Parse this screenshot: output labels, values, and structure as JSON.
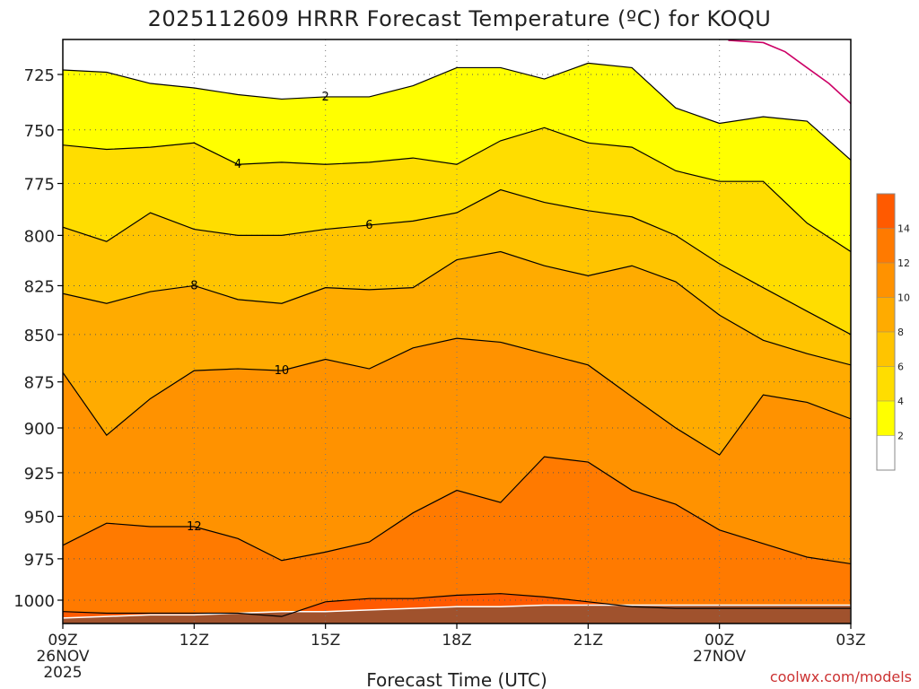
{
  "chart_data": {
    "type": "contour",
    "title": "2025112609 HRRR Forecast Temperature (ºC) for KOQU",
    "xlabel": "Forecast Time (UTC)",
    "credit": "coolwx.com/models",
    "x_hours": [
      0,
      1,
      2,
      3,
      4,
      5,
      6,
      7,
      8,
      9,
      10,
      11,
      12,
      13,
      14,
      15,
      16,
      17,
      18
    ],
    "x_ticks": [
      {
        "hour": 0,
        "label": "09Z",
        "line2": "26NOV",
        "line3": "2025"
      },
      {
        "hour": 3,
        "label": "12Z",
        "line2": "",
        "line3": ""
      },
      {
        "hour": 6,
        "label": "15Z",
        "line2": "",
        "line3": ""
      },
      {
        "hour": 9,
        "label": "18Z",
        "line2": "",
        "line3": ""
      },
      {
        "hour": 12,
        "label": "21Z",
        "line2": "",
        "line3": ""
      },
      {
        "hour": 15,
        "label": "00Z",
        "line2": "27NOV",
        "line3": ""
      },
      {
        "hour": 18,
        "label": "03Z",
        "line2": "",
        "line3": ""
      }
    ],
    "y_ticks": [
      "725",
      "750",
      "775",
      "800",
      "825",
      "850",
      "875",
      "900",
      "925",
      "950",
      "975",
      "1000"
    ],
    "y_tick_values": [
      725,
      750,
      775,
      800,
      825,
      850,
      875,
      900,
      925,
      950,
      975,
      1000
    ],
    "y_axis": "pressure (hPa), log scale, inverted",
    "levels": [
      2,
      4,
      6,
      8,
      10,
      12,
      14
    ],
    "level_colors": [
      "#ffffff",
      "#ffff00",
      "#ffdd00",
      "#ffc400",
      "#ffab00",
      "#ff9200",
      "#ff7a00",
      "#ff5a00"
    ],
    "ground_color": "#a0522d",
    "freezing_line_color": "#cc0066",
    "contours": [
      {
        "level": 2,
        "label": "2",
        "label_hour": 6,
        "pressures": [
          723,
          724,
          729,
          731,
          734,
          736,
          735,
          735,
          730,
          722,
          722,
          727,
          720,
          722,
          740,
          747,
          744,
          746,
          764
        ]
      },
      {
        "level": 4,
        "label": "4",
        "label_hour": 4,
        "pressures": [
          757,
          759,
          758,
          756,
          766,
          765,
          766,
          765,
          763,
          766,
          755,
          749,
          756,
          758,
          769,
          774,
          774,
          794,
          808
        ]
      },
      {
        "level": 6,
        "label": "6",
        "label_hour": 7,
        "pressures": [
          796,
          803,
          789,
          797,
          800,
          800,
          797,
          795,
          793,
          789,
          778,
          784,
          788,
          791,
          800,
          814,
          826,
          838,
          850
        ]
      },
      {
        "level": 8,
        "label": "8",
        "label_hour": 3,
        "pressures": [
          829,
          834,
          828,
          825,
          832,
          834,
          826,
          827,
          826,
          812,
          808,
          815,
          820,
          815,
          823,
          840,
          853,
          860,
          866
        ]
      },
      {
        "level": 10,
        "label": "10",
        "label_hour": 5,
        "pressures": [
          870,
          904,
          884,
          869,
          868,
          869,
          863,
          868,
          857,
          852,
          854,
          860,
          866,
          883,
          900,
          915,
          882,
          886,
          895
        ]
      },
      {
        "level": 12,
        "label": "12",
        "label_hour": 3,
        "pressures": [
          967,
          954,
          956,
          956,
          963,
          976,
          971,
          965,
          948,
          935,
          942,
          916,
          919,
          935,
          943,
          958,
          966,
          974,
          978
        ]
      },
      {
        "level": 14,
        "label": "",
        "label_hour": -1,
        "pressures": [
          1007,
          1008,
          1008,
          1008,
          1008,
          1010,
          1001,
          999,
          999,
          997,
          996,
          998,
          1001,
          1004,
          1005,
          1005,
          1005,
          1005,
          1005
        ]
      }
    ],
    "ground_pressure": [
      1011,
      1010,
      1009,
      1009,
      1008,
      1007,
      1007,
      1006,
      1005,
      1004,
      1004,
      1003,
      1003,
      1003,
      1003,
      1003,
      1003,
      1003,
      1003
    ],
    "freezing_line": {
      "hours": [
        15.2,
        16,
        16.5,
        17,
        17.5,
        18
      ],
      "pressures": [
        710,
        711,
        715,
        722,
        729,
        738
      ]
    },
    "colorbar": {
      "labels": [
        "2",
        "4",
        "6",
        "8",
        "10",
        "12",
        "14"
      ],
      "values": [
        2,
        4,
        6,
        8,
        10,
        12,
        14
      ],
      "min": 0,
      "max": 16
    }
  }
}
